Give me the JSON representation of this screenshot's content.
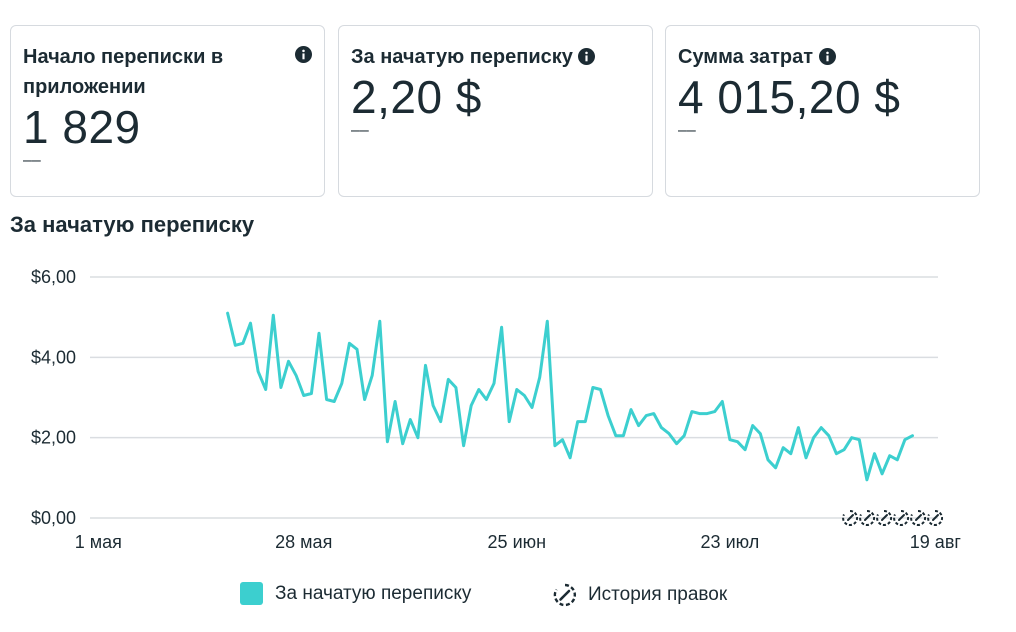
{
  "cards": [
    {
      "title": "Начало переписки в приложении",
      "value": "1 829",
      "delta": "––"
    },
    {
      "title": "За начатую переписку",
      "value": "2,20 $",
      "delta": "––"
    },
    {
      "title": "Сумма затрат",
      "value": "4 015,20 $",
      "delta": "––"
    }
  ],
  "section_title": "За начатую переписку",
  "legend": {
    "series_label": "За начатую переписку",
    "history_label": "История правок",
    "series_color": "#3ccfcf",
    "history_icon": "edit-history-icon"
  },
  "chart_data": {
    "type": "line",
    "x_ticks": [
      "1 мая",
      "28 мая",
      "25 июн",
      "23 июл",
      "19 авг"
    ],
    "y_ticks": [
      "$0,00",
      "$2,00",
      "$4,00",
      "$6,00"
    ],
    "ylim": [
      0,
      6
    ],
    "grid": true,
    "x_start": "2023-04-24",
    "series": [
      {
        "name": "За начатую переписку",
        "color": "#3ccfcf",
        "start_day": 24,
        "values": [
          5.1,
          4.3,
          4.35,
          4.85,
          3.65,
          3.2,
          5.05,
          3.25,
          3.9,
          3.55,
          3.05,
          3.1,
          4.6,
          2.95,
          2.9,
          3.35,
          4.35,
          4.2,
          2.95,
          3.55,
          4.9,
          1.9,
          2.9,
          1.85,
          2.45,
          2.0,
          3.8,
          2.8,
          2.4,
          3.45,
          3.25,
          1.8,
          2.8,
          3.2,
          2.95,
          3.35,
          4.75,
          2.4,
          3.2,
          3.05,
          2.75,
          3.5,
          4.9,
          1.8,
          1.95,
          1.5,
          2.4,
          2.4,
          3.25,
          3.2,
          2.55,
          2.05,
          2.05,
          2.7,
          2.3,
          2.55,
          2.6,
          2.25,
          2.1,
          1.85,
          2.05,
          2.65,
          2.6,
          2.6,
          2.65,
          2.9,
          1.95,
          1.9,
          1.7,
          2.3,
          2.1,
          1.45,
          1.25,
          1.75,
          1.6,
          2.25,
          1.5,
          2.0,
          2.25,
          2.05,
          1.6,
          1.7,
          2.0,
          1.95,
          0.95,
          1.6,
          1.1,
          1.55,
          1.45,
          1.95,
          2.05
        ]
      }
    ]
  }
}
